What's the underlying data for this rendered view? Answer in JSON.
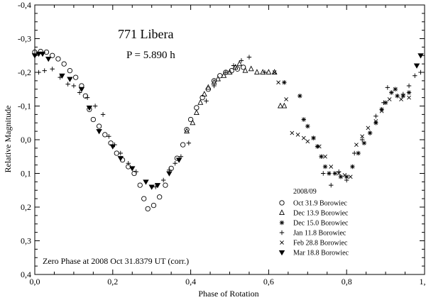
{
  "chart_data": {
    "type": "scatter",
    "title": "771 Libera",
    "subtitle": "P = 5.890 h",
    "annotation": "Zero Phase at 2008 Oct 31.8379 UT (corr.)",
    "xlabel": "Phase of Rotation",
    "ylabel": "Relative Magnitude",
    "xlim": [
      0.0,
      1.0
    ],
    "ylim": [
      -0.4,
      0.4
    ],
    "y_inverted": true,
    "x_ticks": [
      "0,0",
      "0,2",
      "0,4",
      "0,6",
      "0,8",
      "1,0"
    ],
    "y_ticks": [
      "-0,4",
      "-0,3",
      "-0,2",
      "-0,1",
      "0,0",
      "0,1",
      "0,2",
      "0,3",
      "0,4"
    ],
    "grid": false,
    "legend_title": "2008/09",
    "legend_position": "lower-right",
    "series": [
      {
        "name": "Oct 31.9 Borowiec",
        "marker": "circle",
        "points": [
          [
            0.0,
            -0.26
          ],
          [
            0.015,
            -0.262
          ],
          [
            0.03,
            -0.26
          ],
          [
            0.045,
            -0.25
          ],
          [
            0.06,
            -0.24
          ],
          [
            0.075,
            -0.225
          ],
          [
            0.09,
            -0.205
          ],
          [
            0.105,
            -0.185
          ],
          [
            0.12,
            -0.16
          ],
          [
            0.13,
            -0.13
          ],
          [
            0.14,
            -0.09
          ],
          [
            0.15,
            -0.06
          ],
          [
            0.165,
            -0.04
          ],
          [
            0.18,
            -0.015
          ],
          [
            0.195,
            0.01
          ],
          [
            0.21,
            0.04
          ],
          [
            0.225,
            0.06
          ],
          [
            0.24,
            0.08
          ],
          [
            0.255,
            0.1
          ],
          [
            0.27,
            0.135
          ],
          [
            0.28,
            0.175
          ],
          [
            0.29,
            0.205
          ],
          [
            0.305,
            0.195
          ],
          [
            0.32,
            0.17
          ],
          [
            0.335,
            0.135
          ],
          [
            0.35,
            0.085
          ],
          [
            0.365,
            0.055
          ],
          [
            0.38,
            0.015
          ],
          [
            0.39,
            -0.03
          ],
          [
            0.4,
            -0.06
          ],
          [
            0.415,
            -0.095
          ],
          [
            0.43,
            -0.125
          ],
          [
            0.445,
            -0.15
          ],
          [
            0.46,
            -0.175
          ],
          [
            0.475,
            -0.19
          ],
          [
            0.49,
            -0.2
          ],
          [
            0.505,
            -0.205
          ],
          [
            0.52,
            -0.21
          ],
          [
            0.535,
            -0.215
          ]
        ]
      },
      {
        "name": "Dec 13.9 Borowiec",
        "marker": "triangle-up",
        "points": [
          [
            0.39,
            -0.025
          ],
          [
            0.405,
            -0.05
          ],
          [
            0.415,
            -0.08
          ],
          [
            0.425,
            -0.11
          ],
          [
            0.435,
            -0.135
          ],
          [
            0.445,
            -0.155
          ],
          [
            0.46,
            -0.17
          ],
          [
            0.47,
            -0.18
          ],
          [
            0.485,
            -0.19
          ],
          [
            0.5,
            -0.2
          ],
          [
            0.515,
            -0.215
          ],
          [
            0.525,
            -0.225
          ],
          [
            0.54,
            -0.205
          ],
          [
            0.555,
            -0.21
          ],
          [
            0.57,
            -0.2
          ],
          [
            0.585,
            -0.2
          ],
          [
            0.6,
            -0.2
          ],
          [
            0.615,
            -0.2
          ],
          [
            0.63,
            -0.1
          ],
          [
            0.64,
            -0.1
          ]
        ]
      },
      {
        "name": "Dec 15.0 Borowiec",
        "marker": "asterisk",
        "points": [
          [
            0.64,
            -0.17
          ],
          [
            0.68,
            -0.13
          ],
          [
            0.69,
            -0.06
          ],
          [
            0.7,
            -0.04
          ],
          [
            0.715,
            -0.005
          ],
          [
            0.725,
            0.02
          ],
          [
            0.735,
            0.05
          ],
          [
            0.745,
            0.08
          ],
          [
            0.755,
            0.1
          ],
          [
            0.77,
            0.1
          ],
          [
            0.785,
            0.11
          ],
          [
            0.8,
            0.11
          ],
          [
            0.815,
            0.08
          ],
          [
            0.83,
            0.04
          ],
          [
            0.845,
            0.01
          ],
          [
            0.86,
            -0.02
          ],
          [
            0.875,
            -0.05
          ],
          [
            0.89,
            -0.09
          ],
          [
            0.9,
            -0.11
          ],
          [
            0.915,
            -0.14
          ],
          [
            0.93,
            -0.13
          ],
          [
            0.945,
            -0.13
          ],
          [
            0.96,
            -0.14
          ]
        ]
      },
      {
        "name": "Jan 11.8 Borowiec",
        "marker": "plus",
        "points": [
          [
            0.01,
            -0.2
          ],
          [
            0.025,
            -0.205
          ],
          [
            0.045,
            -0.21
          ],
          [
            0.065,
            -0.185
          ],
          [
            0.085,
            -0.165
          ],
          [
            0.1,
            -0.16
          ],
          [
            0.115,
            -0.14
          ],
          [
            0.135,
            -0.125
          ],
          [
            0.155,
            -0.1
          ],
          [
            0.175,
            -0.075
          ],
          [
            0.19,
            -0.01
          ],
          [
            0.205,
            0.015
          ],
          [
            0.22,
            0.04
          ],
          [
            0.24,
            0.07
          ],
          [
            0.26,
            0.095
          ],
          [
            0.31,
            0.14
          ],
          [
            0.33,
            0.12
          ],
          [
            0.345,
            0.09
          ],
          [
            0.36,
            0.07
          ],
          [
            0.375,
            0.05
          ],
          [
            0.395,
            0.01
          ],
          [
            0.44,
            -0.115
          ],
          [
            0.46,
            -0.16
          ],
          [
            0.49,
            -0.2
          ],
          [
            0.51,
            -0.22
          ],
          [
            0.53,
            -0.235
          ],
          [
            0.55,
            -0.245
          ],
          [
            0.59,
            -0.2
          ],
          [
            0.74,
            0.1
          ],
          [
            0.76,
            0.135
          ],
          [
            0.78,
            0.095
          ],
          [
            0.8,
            0.12
          ],
          [
            0.82,
            0.04
          ],
          [
            0.84,
            0.0
          ],
          [
            0.86,
            -0.02
          ],
          [
            0.875,
            -0.07
          ],
          [
            0.895,
            -0.11
          ],
          [
            0.905,
            -0.155
          ],
          [
            0.925,
            -0.15
          ],
          [
            0.945,
            -0.135
          ],
          [
            0.96,
            -0.16
          ],
          [
            0.975,
            -0.19
          ],
          [
            0.99,
            -0.2
          ]
        ]
      },
      {
        "name": "Feb 28.8 Borowiec",
        "marker": "cross",
        "points": [
          [
            0.615,
            -0.2
          ],
          [
            0.625,
            -0.17
          ],
          [
            0.645,
            -0.12
          ],
          [
            0.66,
            -0.02
          ],
          [
            0.675,
            -0.015
          ],
          [
            0.69,
            -0.005
          ],
          [
            0.7,
            0.005
          ],
          [
            0.715,
            -0.005
          ],
          [
            0.73,
            0.02
          ],
          [
            0.745,
            0.05
          ],
          [
            0.76,
            0.08
          ],
          [
            0.78,
            0.1
          ],
          [
            0.795,
            0.105
          ],
          [
            0.81,
            0.11
          ],
          [
            0.825,
            0.015
          ],
          [
            0.84,
            -0.01
          ],
          [
            0.855,
            -0.035
          ],
          [
            0.875,
            -0.055
          ],
          [
            0.89,
            -0.085
          ],
          [
            0.91,
            -0.12
          ],
          [
            0.925,
            -0.15
          ],
          [
            0.94,
            -0.12
          ],
          [
            0.96,
            -0.125
          ]
        ]
      },
      {
        "name": "Mar 18.8 Borowiec",
        "marker": "triangle-down",
        "points": [
          [
            0.0,
            -0.25
          ],
          [
            0.01,
            -0.255
          ],
          [
            0.02,
            -0.255
          ],
          [
            0.035,
            -0.24
          ],
          [
            0.07,
            -0.19
          ],
          [
            0.09,
            -0.18
          ],
          [
            0.12,
            -0.15
          ],
          [
            0.14,
            -0.095
          ],
          [
            0.165,
            -0.025
          ],
          [
            0.2,
            0.02
          ],
          [
            0.22,
            0.055
          ],
          [
            0.25,
            0.085
          ],
          [
            0.285,
            0.125
          ],
          [
            0.3,
            0.14
          ],
          [
            0.315,
            0.135
          ],
          [
            0.345,
            0.1
          ],
          [
            0.37,
            0.06
          ],
          [
            0.98,
            -0.22
          ],
          [
            0.99,
            -0.25
          ]
        ]
      }
    ]
  }
}
